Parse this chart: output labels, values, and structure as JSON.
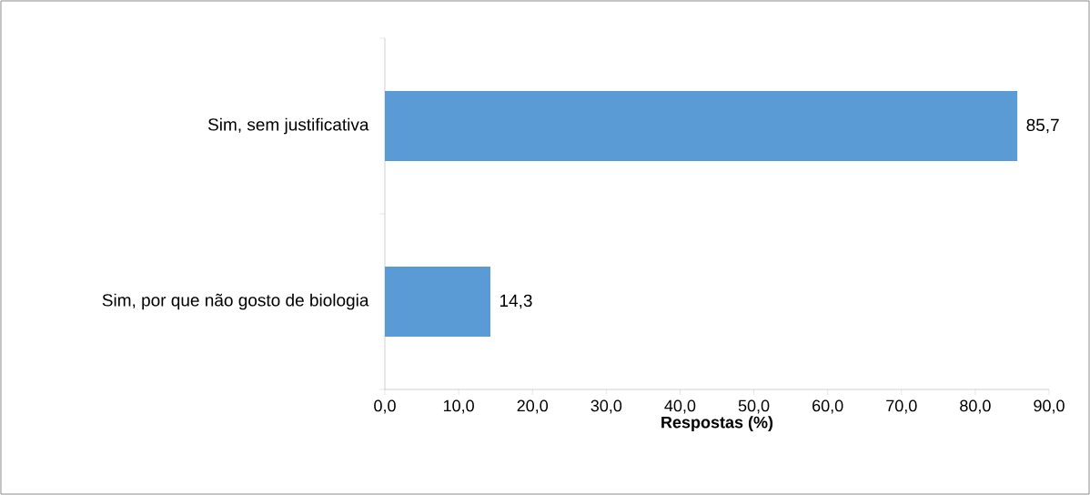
{
  "chart_data": {
    "type": "bar",
    "orientation": "horizontal",
    "categories": [
      "Sim, sem justificativa",
      "Sim, por que não gosto de biologia"
    ],
    "values": [
      85.7,
      14.3
    ],
    "value_labels": [
      "85,7",
      "14,3"
    ],
    "color": "#5b9bd5",
    "xlabel": "**Respostas (%)**",
    "xlim": [
      0,
      90
    ],
    "xticks": [
      {
        "value": 0,
        "label": "0,0"
      },
      {
        "value": 10,
        "label": "10,0"
      },
      {
        "value": 20,
        "label": "20,0"
      },
      {
        "value": 30,
        "label": "30,0"
      },
      {
        "value": 40,
        "label": "40,0"
      },
      {
        "value": 50,
        "label": "50,0"
      },
      {
        "value": 60,
        "label": "60,0"
      },
      {
        "value": 70,
        "label": "70,0"
      },
      {
        "value": 80,
        "label": "80,0"
      },
      {
        "value": 90,
        "label": "90,0"
      }
    ]
  }
}
